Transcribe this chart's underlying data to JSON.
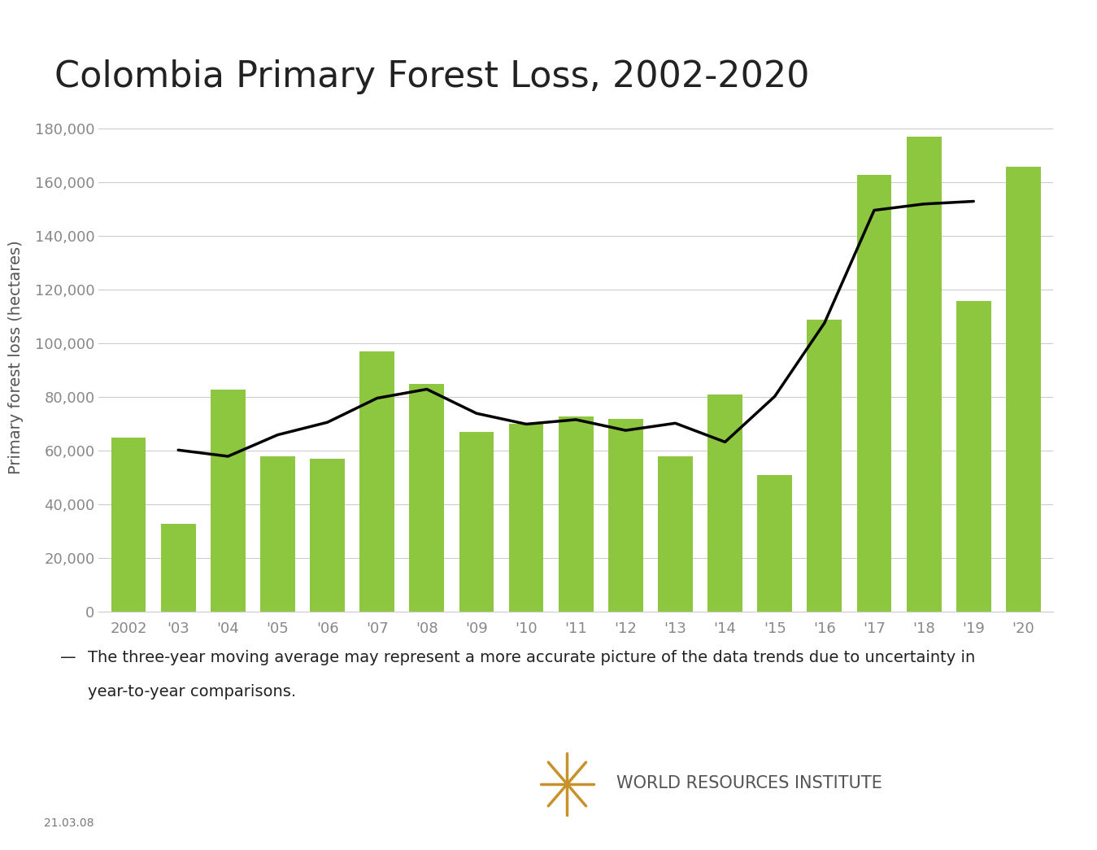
{
  "title": "Colombia Primary Forest Loss, 2002-2020",
  "ylabel": "Primary forest loss (hectares)",
  "years": [
    2002,
    2003,
    2004,
    2005,
    2006,
    2007,
    2008,
    2009,
    2010,
    2011,
    2012,
    2013,
    2014,
    2015,
    2016,
    2017,
    2018,
    2019,
    2020
  ],
  "values": [
    65000,
    33000,
    83000,
    58000,
    57000,
    97000,
    85000,
    67000,
    70000,
    73000,
    72000,
    58000,
    81000,
    51000,
    109000,
    163000,
    177000,
    116000,
    166000
  ],
  "bar_color": "#8dc63f",
  "line_color": "#000000",
  "ylim": [
    0,
    190000
  ],
  "yticks": [
    0,
    20000,
    40000,
    60000,
    80000,
    100000,
    120000,
    140000,
    160000,
    180000
  ],
  "tick_labels": [
    "2002",
    "'03",
    "'04",
    "'05",
    "'06",
    "'07",
    "'08",
    "'09",
    "'10",
    "'11",
    "'12",
    "'13",
    "'14",
    "'15",
    "'16",
    "'17",
    "'18",
    "'19",
    "'20"
  ],
  "note_line": "The three-year moving average may represent a more accurate picture of the data trends due to uncertainty in",
  "note_line2": "year-to-year comparisons.",
  "date_label": "21.03.08",
  "background_color": "#ffffff",
  "title_fontsize": 32,
  "axis_fontsize": 14,
  "tick_fontsize": 13,
  "note_fontsize": 14,
  "gfw_color": "#8dc63f",
  "wri_color": "#c8922a"
}
